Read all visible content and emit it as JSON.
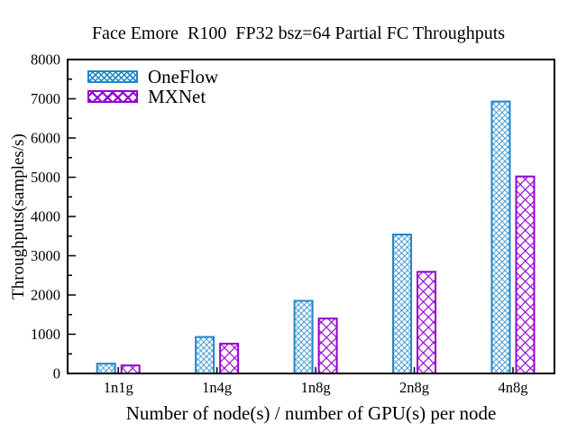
{
  "chart_data": {
    "type": "bar",
    "title": "Face Emore  R100  FP32 bsz=64 Partial FC Throughputs",
    "xlabel": "Number of node(s) / number of GPU(s) per node",
    "ylabel": "Throughputs(samples/s)",
    "categories": [
      "1n1g",
      "1n4g",
      "1n8g",
      "2n8g",
      "4n8g"
    ],
    "series": [
      {
        "name": "OneFlow",
        "color": "#1f86c8",
        "pattern": "fine-crosshatch",
        "values": [
          250,
          930,
          1850,
          3540,
          6930
        ]
      },
      {
        "name": "MXNet",
        "color": "#9400d3",
        "pattern": "wide-crosshatch",
        "values": [
          205,
          760,
          1400,
          2590,
          5020
        ]
      }
    ],
    "ylim": [
      0,
      8000
    ],
    "ytick_step": 1000,
    "yminor_step": 500,
    "ytick_labels": [
      "0",
      "1000",
      "2000",
      "3000",
      "4000",
      "5000",
      "6000",
      "7000",
      "8000"
    ],
    "grid": false,
    "legend_position": "top-left",
    "axis_color": "#000000",
    "background_color": "#ffffff"
  }
}
